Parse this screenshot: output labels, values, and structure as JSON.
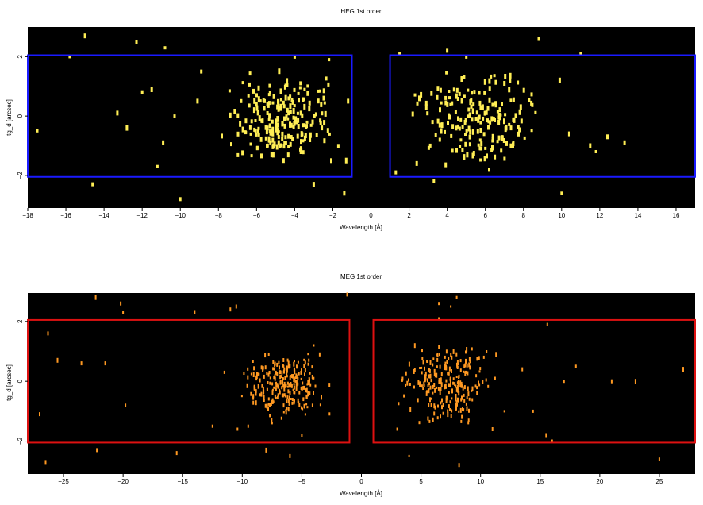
{
  "chart_data": [
    {
      "type": "scatter",
      "title": "HEG 1st order",
      "xlabel": "Wavelength [Å]",
      "ylabel": "tg_d [arcsec]",
      "xlim": [
        -18,
        17
      ],
      "ylim": [
        -3.1,
        3.0
      ],
      "xticks": [
        -18,
        -16,
        -14,
        -12,
        -10,
        -8,
        -6,
        -4,
        -2,
        0,
        2,
        4,
        6,
        8,
        10,
        12,
        14,
        16
      ],
      "xtick_labels": [
        "−18",
        "−16",
        "−14",
        "−12",
        "−10",
        "−8",
        "−6",
        "−4",
        "−2",
        "0",
        "2",
        "4",
        "6",
        "8",
        "10",
        "12",
        "14",
        "16"
      ],
      "yticks": [
        -2,
        0,
        2
      ],
      "ytick_labels": [
        "−2",
        "0",
        "2"
      ],
      "background": "#000000",
      "event_color": "#ffee55",
      "region_color": "#1a1aff",
      "regions": [
        {
          "x": [
            -18,
            -1
          ],
          "y": [
            -2.05,
            2.05
          ]
        },
        {
          "x": [
            1,
            17
          ],
          "y": [
            -2.05,
            2.05
          ]
        }
      ],
      "clusters": [
        {
          "x_range": [
            -9,
            -0.8
          ],
          "y_range": [
            -1.7,
            1.6
          ],
          "count": 220
        },
        {
          "x_range": [
            1.2,
            10
          ],
          "y_range": [
            -1.8,
            1.7
          ],
          "count": 190
        }
      ],
      "scatter_points": [
        [
          -17.5,
          -0.5
        ],
        [
          -15.8,
          2.0
        ],
        [
          -15.0,
          2.7
        ],
        [
          -14.6,
          -2.3
        ],
        [
          -13.3,
          0.1
        ],
        [
          -12.3,
          2.5
        ],
        [
          -12.0,
          0.8
        ],
        [
          -11.5,
          0.9
        ],
        [
          -11.2,
          -1.7
        ],
        [
          -10.9,
          -0.9
        ],
        [
          -10.3,
          0.0
        ],
        [
          -10.0,
          -2.8
        ],
        [
          -9.1,
          0.5
        ],
        [
          -8.9,
          1.5
        ],
        [
          -4.0,
          2.0
        ],
        [
          -3.0,
          -2.3
        ],
        [
          -2.2,
          1.9
        ],
        [
          -1.4,
          -2.6
        ],
        [
          -1.3,
          -1.5
        ],
        [
          -1.2,
          0.5
        ],
        [
          1.5,
          2.1
        ],
        [
          1.3,
          -1.9
        ],
        [
          4.0,
          2.2
        ],
        [
          5.0,
          2.0
        ],
        [
          6.2,
          -1.8
        ],
        [
          7.0,
          1.1
        ],
        [
          8.8,
          2.6
        ],
        [
          9.9,
          1.2
        ],
        [
          10.0,
          -2.6
        ],
        [
          10.4,
          -0.6
        ],
        [
          11.0,
          2.1
        ],
        [
          11.5,
          -1.0
        ],
        [
          11.8,
          -1.2
        ],
        [
          12.4,
          -0.7
        ],
        [
          13.3,
          -0.9
        ],
        [
          -10.8,
          2.3
        ],
        [
          -12.8,
          -0.4
        ],
        [
          3.3,
          -2.2
        ],
        [
          2.4,
          -1.6
        ]
      ]
    },
    {
      "type": "scatter",
      "title": "MEG 1st order",
      "xlabel": "Wavelength [Å]",
      "ylabel": "tg_d [arcsec]",
      "xlim": [
        -28,
        28
      ],
      "ylim": [
        -3.1,
        2.95
      ],
      "xticks": [
        -25,
        -20,
        -15,
        -10,
        -5,
        0,
        5,
        10,
        15,
        20,
        25
      ],
      "xtick_labels": [
        "−25",
        "−20",
        "−15",
        "−10",
        "−5",
        "0",
        "5",
        "10",
        "15",
        "20",
        "25"
      ],
      "yticks": [
        -2,
        0,
        2
      ],
      "ytick_labels": [
        "−2",
        "0",
        "2"
      ],
      "background": "#000000",
      "event_color": "#ff9922",
      "region_color": "#dd1111",
      "regions": [
        {
          "x": [
            -28,
            -1
          ],
          "y": [
            -2.05,
            2.05
          ]
        },
        {
          "x": [
            1,
            28
          ],
          "y": [
            -2.05,
            2.05
          ]
        }
      ],
      "clusters": [
        {
          "x_range": [
            -11,
            -2
          ],
          "y_range": [
            -1.4,
            1.1
          ],
          "count": 240
        },
        {
          "x_range": [
            2,
            12
          ],
          "y_range": [
            -1.5,
            1.3
          ],
          "count": 240
        }
      ],
      "scatter_points": [
        [
          -26.3,
          1.6
        ],
        [
          -27.0,
          -1.1
        ],
        [
          -26.5,
          -2.7
        ],
        [
          -25.5,
          0.7
        ],
        [
          -23.5,
          0.6
        ],
        [
          -22.3,
          2.8
        ],
        [
          -22.2,
          -2.3
        ],
        [
          -21.5,
          0.6
        ],
        [
          -20.2,
          2.6
        ],
        [
          -20.0,
          2.3
        ],
        [
          -19.8,
          -0.8
        ],
        [
          -15.5,
          -2.4
        ],
        [
          -14.0,
          2.3
        ],
        [
          -11.0,
          2.4
        ],
        [
          -10.5,
          2.5
        ],
        [
          -10.4,
          -1.6
        ],
        [
          -12.5,
          -1.5
        ],
        [
          -11.5,
          0.3
        ],
        [
          -9.5,
          -1.5
        ],
        [
          -8.0,
          -2.3
        ],
        [
          -7.5,
          -1.4
        ],
        [
          -5.0,
          -1.8
        ],
        [
          -1.2,
          2.9
        ],
        [
          -6.0,
          -2.5
        ],
        [
          -4.0,
          1.2
        ],
        [
          3.0,
          -1.6
        ],
        [
          4.0,
          -2.5
        ],
        [
          6.5,
          2.6
        ],
        [
          6.5,
          2.1
        ],
        [
          7.5,
          2.5
        ],
        [
          8.0,
          2.8
        ],
        [
          8.2,
          -2.8
        ],
        [
          9.0,
          -1.3
        ],
        [
          10.5,
          1.0
        ],
        [
          11.3,
          0.9
        ],
        [
          11.0,
          -1.6
        ],
        [
          13.5,
          0.4
        ],
        [
          15.6,
          1.9
        ],
        [
          15.5,
          -1.8
        ],
        [
          18.0,
          0.5
        ],
        [
          17.0,
          0.0
        ],
        [
          21.0,
          0.0
        ],
        [
          25.0,
          -2.6
        ],
        [
          23.0,
          0.0
        ],
        [
          27.0,
          0.4
        ],
        [
          14.4,
          -1.0
        ],
        [
          12.0,
          -1.0
        ],
        [
          -3.5,
          0.9
        ],
        [
          16.0,
          -2.0
        ]
      ]
    }
  ]
}
